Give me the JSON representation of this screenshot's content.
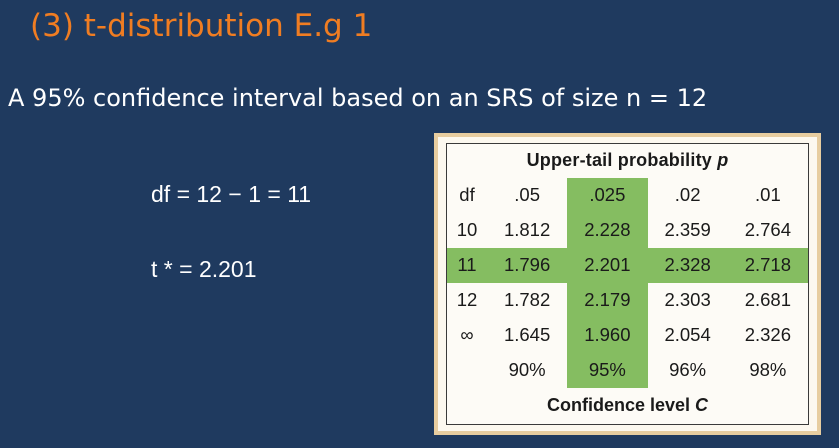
{
  "slide": {
    "title": "(3)  t-distribution  E.g 1",
    "subtitle": "A 95% confidence interval based on an SRS of size n = 12",
    "df_line": "df = 12 − 1 = 11",
    "tstar_line": "t * = 2.201"
  },
  "table": {
    "top_caption_prefix": "Upper-tail probability ",
    "top_caption_var": "p",
    "bottom_caption_prefix": "Confidence level ",
    "bottom_caption_var": "C",
    "header": {
      "df": "df",
      "p": [
        ".05",
        ".025",
        ".02",
        ".01"
      ]
    },
    "rows": [
      {
        "df": "10",
        "values": [
          "1.812",
          "2.228",
          "2.359",
          "2.764"
        ]
      },
      {
        "df": "11",
        "values": [
          "1.796",
          "2.201",
          "2.328",
          "2.718"
        ]
      },
      {
        "df": "12",
        "values": [
          "1.782",
          "2.179",
          "2.303",
          "2.681"
        ]
      },
      {
        "df": "∞",
        "values": [
          "1.645",
          "1.960",
          "2.054",
          "2.326"
        ]
      }
    ],
    "confidence": [
      "90%",
      "95%",
      "96%",
      "98%"
    ],
    "highlight_color": "#85bd61"
  },
  "colors": {
    "background": "#1f3a5f",
    "title": "#f07d22",
    "text": "#ffffff",
    "table_border": "#e7cda0"
  }
}
